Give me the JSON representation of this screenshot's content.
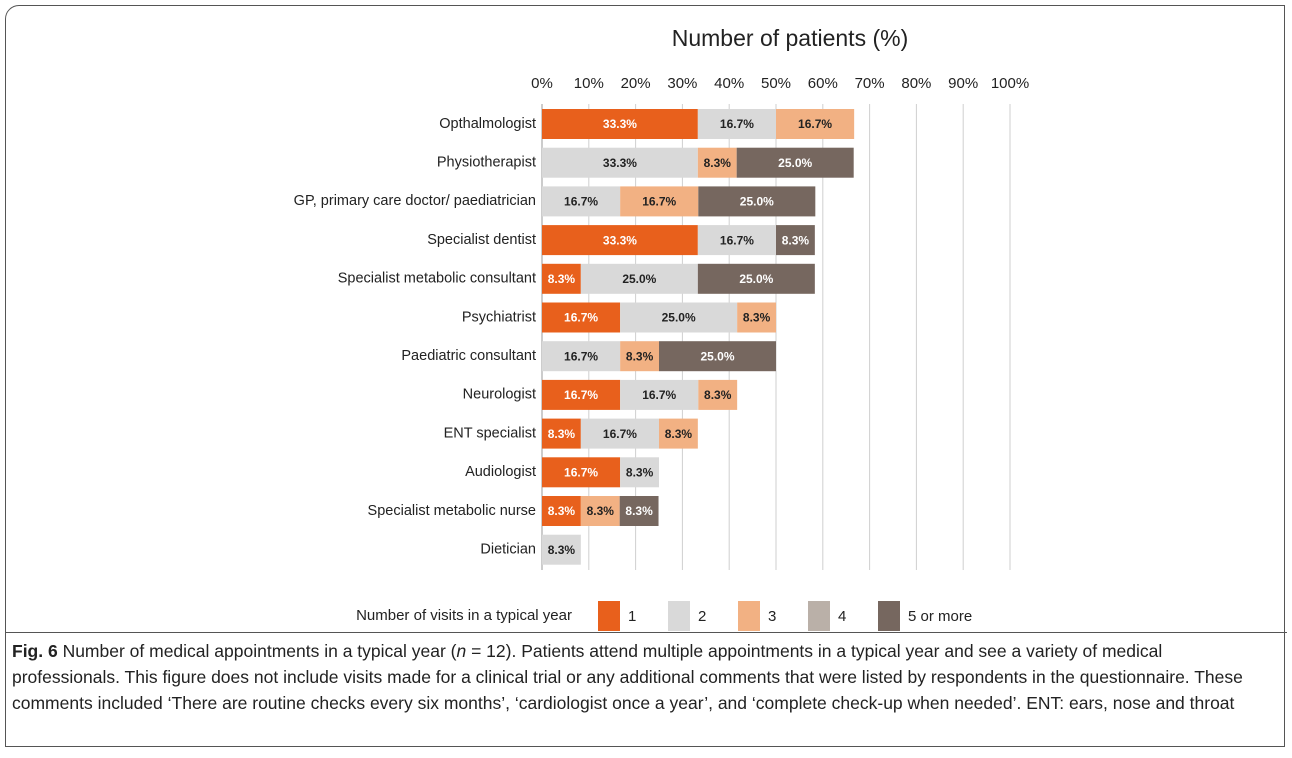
{
  "chart_data": {
    "type": "stacked_barh",
    "title": "Number of patients (%)",
    "categories": [
      "Opthalmologist",
      "Physiotherapist",
      "GP, primary care doctor/ paediatrician",
      "Specialist dentist",
      "Specialist metabolic consultant",
      "Psychiatrist",
      "Paediatric consultant",
      "Neurologist",
      "ENT specialist",
      "Audiologist",
      "Specialist metabolic nurse",
      "Dietician"
    ],
    "series": [
      {
        "name": "1",
        "color": "#e8601c",
        "label_color": "#ffffff",
        "values": [
          33.3,
          null,
          null,
          33.3,
          8.3,
          16.7,
          null,
          16.7,
          8.3,
          16.7,
          8.3,
          null
        ],
        "value_labels": [
          "33.3%",
          null,
          null,
          "33.3%",
          "8.3%",
          "16.7%",
          null,
          "16.7%",
          "8.3%",
          "16.7%",
          "8.3%",
          null
        ]
      },
      {
        "name": "2",
        "color": "#d9d9d9",
        "label_color": "#222222",
        "values": [
          16.7,
          33.3,
          16.7,
          16.7,
          25.0,
          25.0,
          16.7,
          16.7,
          16.7,
          8.3,
          null,
          8.3
        ],
        "value_labels": [
          "16.7%",
          "33.3%",
          "16.7%",
          "16.7%",
          "25.0%",
          "25.0%",
          "16.7%",
          "16.7%",
          "16.7%",
          "8.3%",
          null,
          "8.3%"
        ]
      },
      {
        "name": "3",
        "color": "#f2b183",
        "label_color": "#222222",
        "values": [
          16.7,
          8.3,
          16.7,
          null,
          null,
          8.3,
          8.3,
          8.3,
          8.3,
          null,
          8.3,
          null
        ],
        "value_labels": [
          "16.7%",
          "8.3%",
          "16.7%",
          null,
          null,
          "8.3%",
          "8.3%",
          "8.3%",
          "8.3%",
          null,
          "8.3%",
          null
        ]
      },
      {
        "name": "4",
        "color": "#bab0a8",
        "label_color": "#222222",
        "values": [
          null,
          null,
          null,
          null,
          null,
          null,
          null,
          null,
          null,
          null,
          null,
          null
        ],
        "value_labels": [
          null,
          null,
          null,
          null,
          null,
          null,
          null,
          null,
          null,
          null,
          null,
          null
        ]
      },
      {
        "name": "5 or more",
        "color": "#76675f",
        "label_color": "#ffffff",
        "values": [
          null,
          25.0,
          25.0,
          8.3,
          25.0,
          null,
          25.0,
          null,
          null,
          null,
          8.3,
          null
        ],
        "value_labels": [
          null,
          "25.0%",
          "25.0%",
          "8.3%",
          "25.0%",
          null,
          "25.0%",
          null,
          null,
          null,
          "8.3%",
          null
        ]
      }
    ],
    "xlim": [
      0,
      100
    ],
    "xticks": [
      {
        "value": 0,
        "label": "0%"
      },
      {
        "value": 10,
        "label": "10%"
      },
      {
        "value": 20,
        "label": "20%"
      },
      {
        "value": 30,
        "label": "30%"
      },
      {
        "value": 40,
        "label": "40%"
      },
      {
        "value": 50,
        "label": "50%"
      },
      {
        "value": 60,
        "label": "60%"
      },
      {
        "value": 70,
        "label": "70%"
      },
      {
        "value": 80,
        "label": "80%"
      },
      {
        "value": 90,
        "label": "90%"
      },
      {
        "value": 100,
        "label": "100%"
      }
    ],
    "grid": true,
    "legend_title": "Number of visits in a typical year",
    "legend": "bottom"
  },
  "caption": {
    "label": "Fig. 6",
    "text_before": " Number of medical appointments in a typical year (",
    "italic": "n",
    "text_after": " = 12). Patients attend multiple appointments in a typical year and see a variety of medical professionals. This figure does not include visits made for a clinical trial or any additional comments that were listed by respondents in the questionnaire. These comments included ‘There are routine checks every six months’, ‘cardiologist once a year’, and ‘complete check-up when needed’. ENT: ears, nose and throat"
  }
}
